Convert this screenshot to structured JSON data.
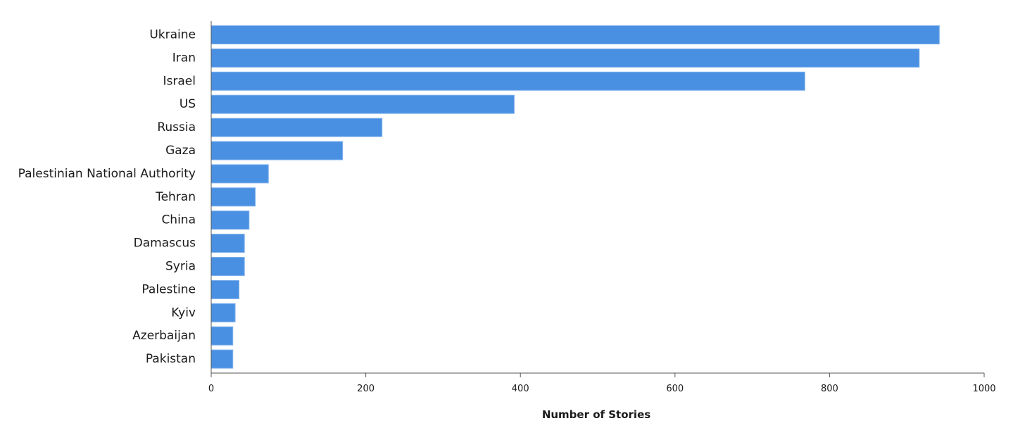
{
  "chart_data": {
    "type": "bar",
    "orientation": "horizontal",
    "categories": [
      "Ukraine",
      "Iran",
      "Israel",
      "US",
      "Russia",
      "Gaza",
      "Palestinian National Authority",
      "Tehran",
      "China",
      "Damascus",
      "Syria",
      "Palestine",
      "Kyiv",
      "Azerbaijan",
      "Pakistan"
    ],
    "values": [
      942,
      916,
      768,
      392,
      221,
      170,
      74,
      57,
      49,
      43,
      43,
      36,
      31,
      28,
      28
    ],
    "xlabel": "Number of Stories",
    "ylabel": "",
    "xlim": [
      0,
      1000
    ],
    "xticks": [
      0,
      200,
      400,
      600,
      800,
      1000
    ],
    "grid": false,
    "bar_color": "#4a90e2"
  }
}
